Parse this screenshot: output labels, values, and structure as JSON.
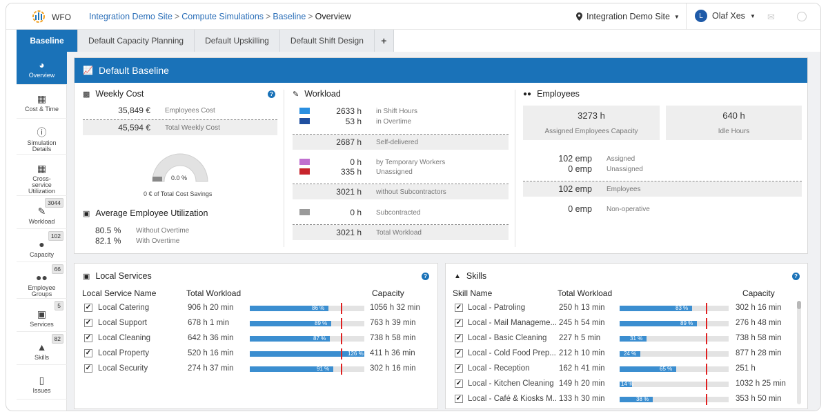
{
  "app": {
    "name": "WFO"
  },
  "breadcrumb": [
    {
      "label": "Integration Demo Site"
    },
    {
      "label": "Compute Simulations"
    },
    {
      "label": "Baseline"
    },
    {
      "label": "Overview"
    }
  ],
  "header": {
    "site": "Integration Demo Site",
    "user_initial": "L",
    "user_name": "Olaf Xes"
  },
  "tabs": [
    {
      "label": "Baseline"
    },
    {
      "label": "Default Capacity Planning"
    },
    {
      "label": "Default Upskilling"
    },
    {
      "label": "Default Shift Design"
    },
    {
      "label": "+"
    }
  ],
  "sidebar": [
    {
      "label": "Overview",
      "icon": "gauge-icon",
      "badge": ""
    },
    {
      "label": "Cost & Time",
      "icon": "calculator-icon",
      "badge": ""
    },
    {
      "label": "Simulation Details",
      "icon": "info-icon",
      "badge": ""
    },
    {
      "label": "Cross-service Utilization",
      "icon": "grid-icon",
      "badge": ""
    },
    {
      "label": "Workload",
      "icon": "edit-icon",
      "badge": "3044"
    },
    {
      "label": "Capacity",
      "icon": "user-icon",
      "badge": "102"
    },
    {
      "label": "Employee Groups",
      "icon": "users-icon",
      "badge": "66"
    },
    {
      "label": "Services",
      "icon": "briefcase-icon",
      "badge": "5"
    },
    {
      "label": "Skills",
      "icon": "graduation-cap-icon",
      "badge": "82"
    },
    {
      "label": "Issues",
      "icon": "mobile-icon",
      "badge": ""
    }
  ],
  "baseline": {
    "title": "Default Baseline",
    "weekly_cost": {
      "title": "Weekly Cost",
      "employees_cost": "35,849 €",
      "employees_cost_label": "Employees Cost",
      "total_weekly_cost": "45,594 €",
      "total_weekly_cost_label": "Total Weekly Cost",
      "gauge_value": "0.0 %",
      "savings_text": "0 € of Total Cost Savings"
    },
    "utilization": {
      "title": "Average Employee Utilization",
      "without_ot": "80.5 %",
      "without_ot_label": "Without Overtime",
      "with_ot": "82.1 %",
      "with_ot_label": "With Overtime"
    },
    "workload": {
      "title": "Workload",
      "shift_hours": "2633 h",
      "shift_hours_label": "in Shift Hours",
      "overtime": "53 h",
      "overtime_label": "in Overtime",
      "self_delivered": "2687 h",
      "self_delivered_label": "Self-delivered",
      "temp_workers": "0 h",
      "temp_workers_label": "by Temporary Workers",
      "unassigned": "335 h",
      "unassigned_label": "Unassigned",
      "without_sub": "3021 h",
      "without_sub_label": "without Subcontractors",
      "subcontracted": "0 h",
      "subcontracted_label": "Subcontracted",
      "total": "3021 h",
      "total_label": "Total Workload",
      "colors": {
        "shift": "#2a8fe0",
        "overtime": "#1f4fa0",
        "temp": "#c070d0",
        "unassigned": "#c8242c",
        "sub": "#9a9a9a"
      }
    },
    "employees": {
      "title": "Employees",
      "assigned_capacity": "3273 h",
      "assigned_capacity_label": "Assigned Employees Capacity",
      "idle_hours": "640 h",
      "idle_hours_label": "Idle Hours",
      "assigned": "102 emp",
      "assigned_label": "Assigned",
      "unassigned": "0 emp",
      "unassigned_label": "Unassigned",
      "employees": "102 emp",
      "employees_label": "Employees",
      "non_operative": "0 emp",
      "non_operative_label": "Non-operative"
    }
  },
  "local_services": {
    "title": "Local Services",
    "columns": [
      "Local Service Name",
      "Total Workload",
      "Capacity"
    ],
    "rows": [
      {
        "name": "Local Catering",
        "workload": "906 h 20 min",
        "pct_label": "86 %",
        "pct": 86,
        "capacity": "1056 h 32 min"
      },
      {
        "name": "Local Support",
        "workload": "678 h 1 min",
        "pct_label": "89 %",
        "pct": 89,
        "capacity": "763 h 39 min"
      },
      {
        "name": "Local Cleaning",
        "workload": "642 h 36 min",
        "pct_label": "87 %",
        "pct": 87,
        "capacity": "738 h 58 min"
      },
      {
        "name": "Local Property",
        "workload": "520 h 16 min",
        "pct_label": "126 %",
        "pct": 126,
        "capacity": "411 h 36 min"
      },
      {
        "name": "Local Security",
        "workload": "274 h 37 min",
        "pct_label": "91 %",
        "pct": 91,
        "capacity": "302 h 16 min"
      }
    ]
  },
  "skills": {
    "title": "Skills",
    "columns": [
      "Skill Name",
      "Total Workload",
      "Capacity"
    ],
    "rows": [
      {
        "name": "Local - Patroling",
        "workload": "250 h 13 min",
        "pct_label": "83 %",
        "pct": 83,
        "capacity": "302 h 16 min"
      },
      {
        "name": "Local - Mail Manageme...",
        "workload": "245 h 54 min",
        "pct_label": "89 %",
        "pct": 89,
        "capacity": "276 h 48 min"
      },
      {
        "name": "Local - Basic Cleaning",
        "workload": "227 h 5 min",
        "pct_label": "31 %",
        "pct": 31,
        "capacity": "738 h 58 min"
      },
      {
        "name": "Local - Cold Food Prep...",
        "workload": "212 h 10 min",
        "pct_label": "24 %",
        "pct": 24,
        "capacity": "877 h 28 min"
      },
      {
        "name": "Local - Reception",
        "workload": "162 h 41 min",
        "pct_label": "65 %",
        "pct": 65,
        "capacity": "251 h"
      },
      {
        "name": "Local - Kitchen Cleaning",
        "workload": "149 h 20 min",
        "pct_label": "14 %",
        "pct": 14,
        "capacity": "1032 h 25 min"
      },
      {
        "name": "Local - Café & Kiosks M...",
        "workload": "133 h 30 min",
        "pct_label": "38 %",
        "pct": 38,
        "capacity": "353 h 50 min"
      }
    ]
  }
}
